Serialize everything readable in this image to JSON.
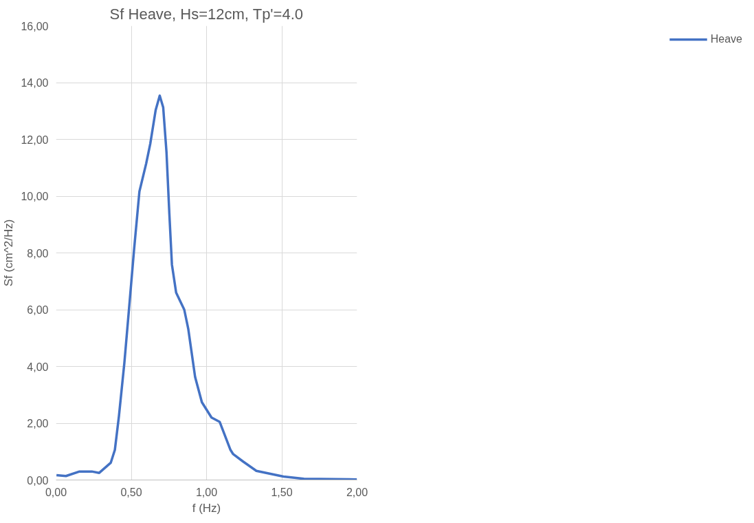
{
  "chart_data": {
    "type": "line",
    "title": "Sf Heave, Hs=12cm, Tp'=4.0",
    "xlabel": "f (Hz)",
    "ylabel": "Sf (cm^2/Hz)",
    "xlim": [
      0,
      2
    ],
    "xticks": [
      {
        "value": 0,
        "label": "0,00"
      },
      {
        "value": 0.5,
        "label": "0,50"
      },
      {
        "value": 1,
        "label": "1,00"
      },
      {
        "value": 1.5,
        "label": "1,50"
      },
      {
        "value": 2,
        "label": "2,00"
      }
    ],
    "ylim": [
      0,
      16
    ],
    "yticks": [
      {
        "value": 0,
        "label": "0,00"
      },
      {
        "value": 2,
        "label": "2,00"
      },
      {
        "value": 4,
        "label": "4,00"
      },
      {
        "value": 6,
        "label": "6,00"
      },
      {
        "value": 8,
        "label": "8,00"
      },
      {
        "value": 10,
        "label": "10,00"
      },
      {
        "value": 12,
        "label": "12,00"
      },
      {
        "value": 14,
        "label": "14,00"
      },
      {
        "value": 16,
        "label": "16,00"
      }
    ],
    "grid": true,
    "legend": "right",
    "marker": "none",
    "line_style": "solid",
    "series": [
      {
        "name": "Heave",
        "color": "#4472c4",
        "x": [
          0.003,
          0.066,
          0.156,
          0.238,
          0.287,
          0.364,
          0.391,
          0.418,
          0.454,
          0.491,
          0.518,
          0.554,
          0.599,
          0.626,
          0.662,
          0.689,
          0.712,
          0.734,
          0.753,
          0.77,
          0.798,
          0.852,
          0.879,
          0.924,
          0.969,
          1.033,
          1.087,
          1.159,
          1.177,
          1.24,
          1.331,
          1.511,
          1.647,
          1.999
        ],
        "values": [
          0.17,
          0.14,
          0.3,
          0.3,
          0.25,
          0.61,
          1.06,
          2.25,
          4.12,
          6.4,
          8.08,
          10.16,
          11.15,
          11.84,
          13.03,
          13.54,
          13.13,
          11.54,
          9.37,
          7.59,
          6.6,
          6.0,
          5.31,
          3.63,
          2.74,
          2.2,
          2.05,
          1.06,
          0.91,
          0.66,
          0.32,
          0.12,
          0.04,
          0.02
        ]
      }
    ]
  }
}
